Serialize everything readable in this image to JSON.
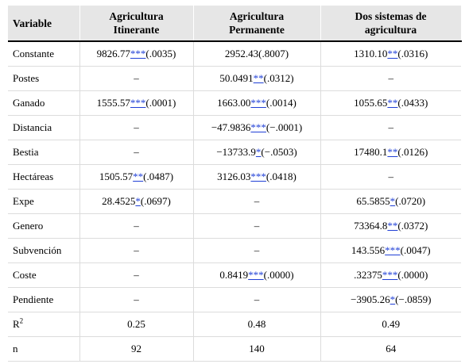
{
  "table": {
    "headers": [
      {
        "line1": "Variable",
        "line2": ""
      },
      {
        "line1": "Agricultura",
        "line2": "Itinerante"
      },
      {
        "line1": "Agricultura",
        "line2": "Permanente"
      },
      {
        "line1": "Dos sistemas de",
        "line2": "agricultura"
      }
    ],
    "rows": [
      {
        "label": "Constante",
        "cells": [
          {
            "pre": "9826.77",
            "stars": "***",
            "post": "(.0035)"
          },
          {
            "pre": "2952.43(.8007)",
            "stars": "",
            "post": ""
          },
          {
            "pre": "1310.10",
            "stars": "**",
            "post": "(.0316)"
          }
        ]
      },
      {
        "label": "Postes",
        "cells": [
          {
            "pre": "–",
            "stars": "",
            "post": ""
          },
          {
            "pre": "50.0491",
            "stars": "**",
            "post": "(.0312)"
          },
          {
            "pre": "–",
            "stars": "",
            "post": ""
          }
        ]
      },
      {
        "label": "Ganado",
        "cells": [
          {
            "pre": "1555.57",
            "stars": "***",
            "post": "(.0001)"
          },
          {
            "pre": "1663.00",
            "stars": "***",
            "post": "(.0014)"
          },
          {
            "pre": "1055.65",
            "stars": "**",
            "post": "(.0433)"
          }
        ]
      },
      {
        "label": "Distancia",
        "cells": [
          {
            "pre": "–",
            "stars": "",
            "post": ""
          },
          {
            "pre": "−47.9836",
            "stars": "***",
            "post": "(−.0001)"
          },
          {
            "pre": "–",
            "stars": "",
            "post": ""
          }
        ]
      },
      {
        "label": "Bestia",
        "cells": [
          {
            "pre": "–",
            "stars": "",
            "post": ""
          },
          {
            "pre": "−13733.9",
            "stars": "*",
            "post": "(−.0503)"
          },
          {
            "pre": "17480.1",
            "stars": "**",
            "post": "(.0126)"
          }
        ]
      },
      {
        "label": "Hectáreas",
        "cells": [
          {
            "pre": "1505.57",
            "stars": "**",
            "post": "(.0487)"
          },
          {
            "pre": "3126.03",
            "stars": "***",
            "post": "(.0418)"
          },
          {
            "pre": "–",
            "stars": "",
            "post": ""
          }
        ]
      },
      {
        "label": "Expe",
        "cells": [
          {
            "pre": "28.4525",
            "stars": "*",
            "post": "(.0697)"
          },
          {
            "pre": "–",
            "stars": "",
            "post": ""
          },
          {
            "pre": "65.5855",
            "stars": "*",
            "post": "(.0720)"
          }
        ]
      },
      {
        "label": "Genero",
        "cells": [
          {
            "pre": "–",
            "stars": "",
            "post": ""
          },
          {
            "pre": "–",
            "stars": "",
            "post": ""
          },
          {
            "pre": "73364.8",
            "stars": "**",
            "post": "(.0372)"
          }
        ]
      },
      {
        "label": "Subvención",
        "cells": [
          {
            "pre": "–",
            "stars": "",
            "post": ""
          },
          {
            "pre": "–",
            "stars": "",
            "post": ""
          },
          {
            "pre": "143.556",
            "stars": "***",
            "post": "(.0047)"
          }
        ]
      },
      {
        "label": "Coste",
        "cells": [
          {
            "pre": "–",
            "stars": "",
            "post": ""
          },
          {
            "pre": "0.8419",
            "stars": "***",
            "post": "(.0000)"
          },
          {
            "pre": ".32375",
            "stars": "***",
            "post": "(.0000)"
          }
        ]
      },
      {
        "label": "Pendiente",
        "cells": [
          {
            "pre": "–",
            "stars": "",
            "post": ""
          },
          {
            "pre": "–",
            "stars": "",
            "post": ""
          },
          {
            "pre": "−3905.26",
            "stars": "*",
            "post": "(−.0859)"
          }
        ]
      },
      {
        "label": "R",
        "sup": "2",
        "cells": [
          {
            "pre": "0.25",
            "stars": "",
            "post": ""
          },
          {
            "pre": "0.48",
            "stars": "",
            "post": ""
          },
          {
            "pre": "0.49",
            "stars": "",
            "post": ""
          }
        ]
      },
      {
        "label": "n",
        "cells": [
          {
            "pre": "92",
            "stars": "",
            "post": ""
          },
          {
            "pre": "140",
            "stars": "",
            "post": ""
          },
          {
            "pre": "64",
            "stars": "",
            "post": ""
          }
        ]
      }
    ]
  }
}
